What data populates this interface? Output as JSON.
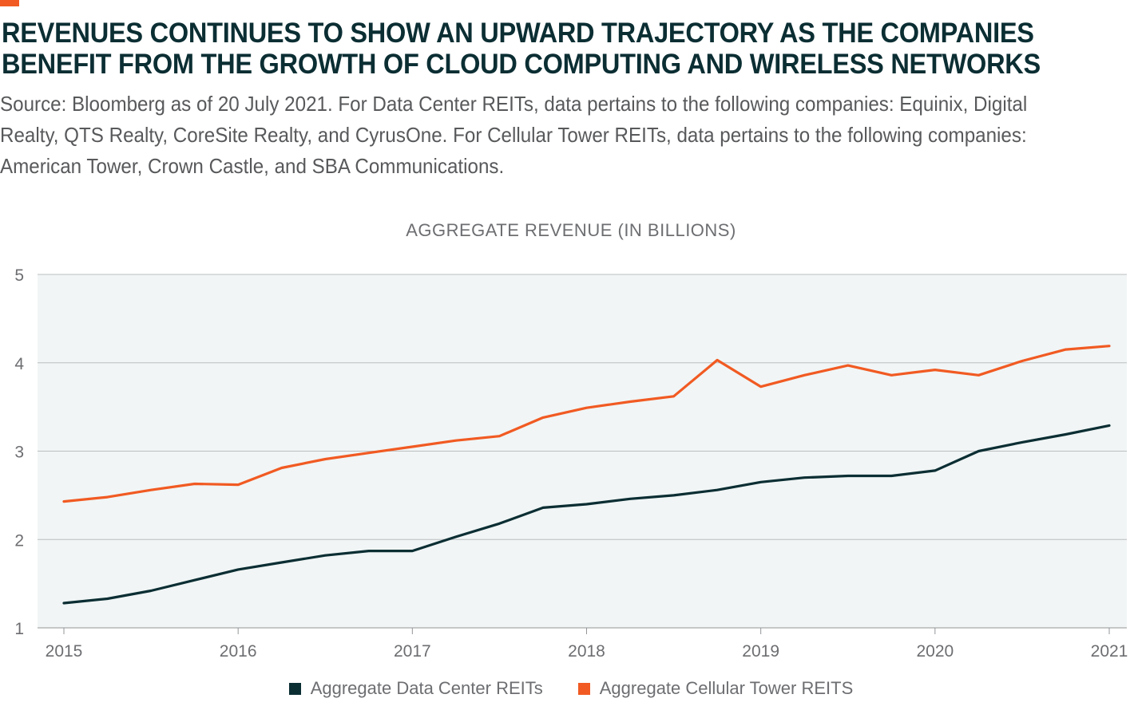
{
  "header": {
    "title": "REVENUES CONTINUES TO SHOW AN UPWARD TRAJECTORY AS THE COMPANIES BENEFIT FROM THE GROWTH OF CLOUD COMPUTING AND WIRELESS NETWORKS",
    "source": "Source: Bloomberg as of 20 July 2021. For Data Center REITs, data pertains to the following companies: Equinix, Digital Realty, QTS Realty, CoreSite Realty, and CyrusOne. For Cellular Tower REITs, data pertains to the following companies: American Tower, Crown Castle, and SBA Communications."
  },
  "colors": {
    "accent": "#f15a22",
    "title": "#0b2e33",
    "data_center": "#0b2e33",
    "cell_tower": "#f15a22",
    "plot_bg": "#f1f5f5",
    "grid": "#bcbec0"
  },
  "chart_data": {
    "type": "line",
    "title": "AGGREGATE REVENUE (IN BILLIONS)",
    "xlabel": "",
    "ylabel": "",
    "xlim": [
      2015,
      2021
    ],
    "ylim": [
      1,
      5
    ],
    "yticks": [
      1,
      2,
      3,
      4,
      5
    ],
    "xticks": [
      "2015",
      "2016",
      "2017",
      "2018",
      "2019",
      "2020",
      "2021"
    ],
    "grid": true,
    "legend": "bottom",
    "x": [
      2015,
      2015.25,
      2015.5,
      2015.75,
      2016,
      2016.25,
      2016.5,
      2016.75,
      2017,
      2017.25,
      2017.5,
      2017.75,
      2018,
      2018.25,
      2018.5,
      2018.75,
      2019,
      2019.25,
      2019.5,
      2019.75,
      2020,
      2020.25,
      2020.5,
      2020.75,
      2021
    ],
    "series": [
      {
        "name": "Aggregate Data Center REITs",
        "color": "#0b2e33",
        "values": [
          1.28,
          1.33,
          1.42,
          1.54,
          1.66,
          1.74,
          1.82,
          1.87,
          1.87,
          2.03,
          2.18,
          2.36,
          2.4,
          2.46,
          2.5,
          2.56,
          2.65,
          2.7,
          2.72,
          2.72,
          2.78,
          3.0,
          3.1,
          3.19,
          3.29
        ]
      },
      {
        "name": "Aggregate Cellular Tower REITS",
        "color": "#f15a22",
        "values": [
          2.43,
          2.48,
          2.56,
          2.63,
          2.62,
          2.81,
          2.91,
          2.98,
          3.05,
          3.12,
          3.17,
          3.38,
          3.49,
          3.56,
          3.62,
          4.03,
          3.73,
          3.86,
          3.97,
          3.86,
          3.92,
          3.86,
          4.02,
          4.15,
          4.19
        ]
      }
    ]
  }
}
